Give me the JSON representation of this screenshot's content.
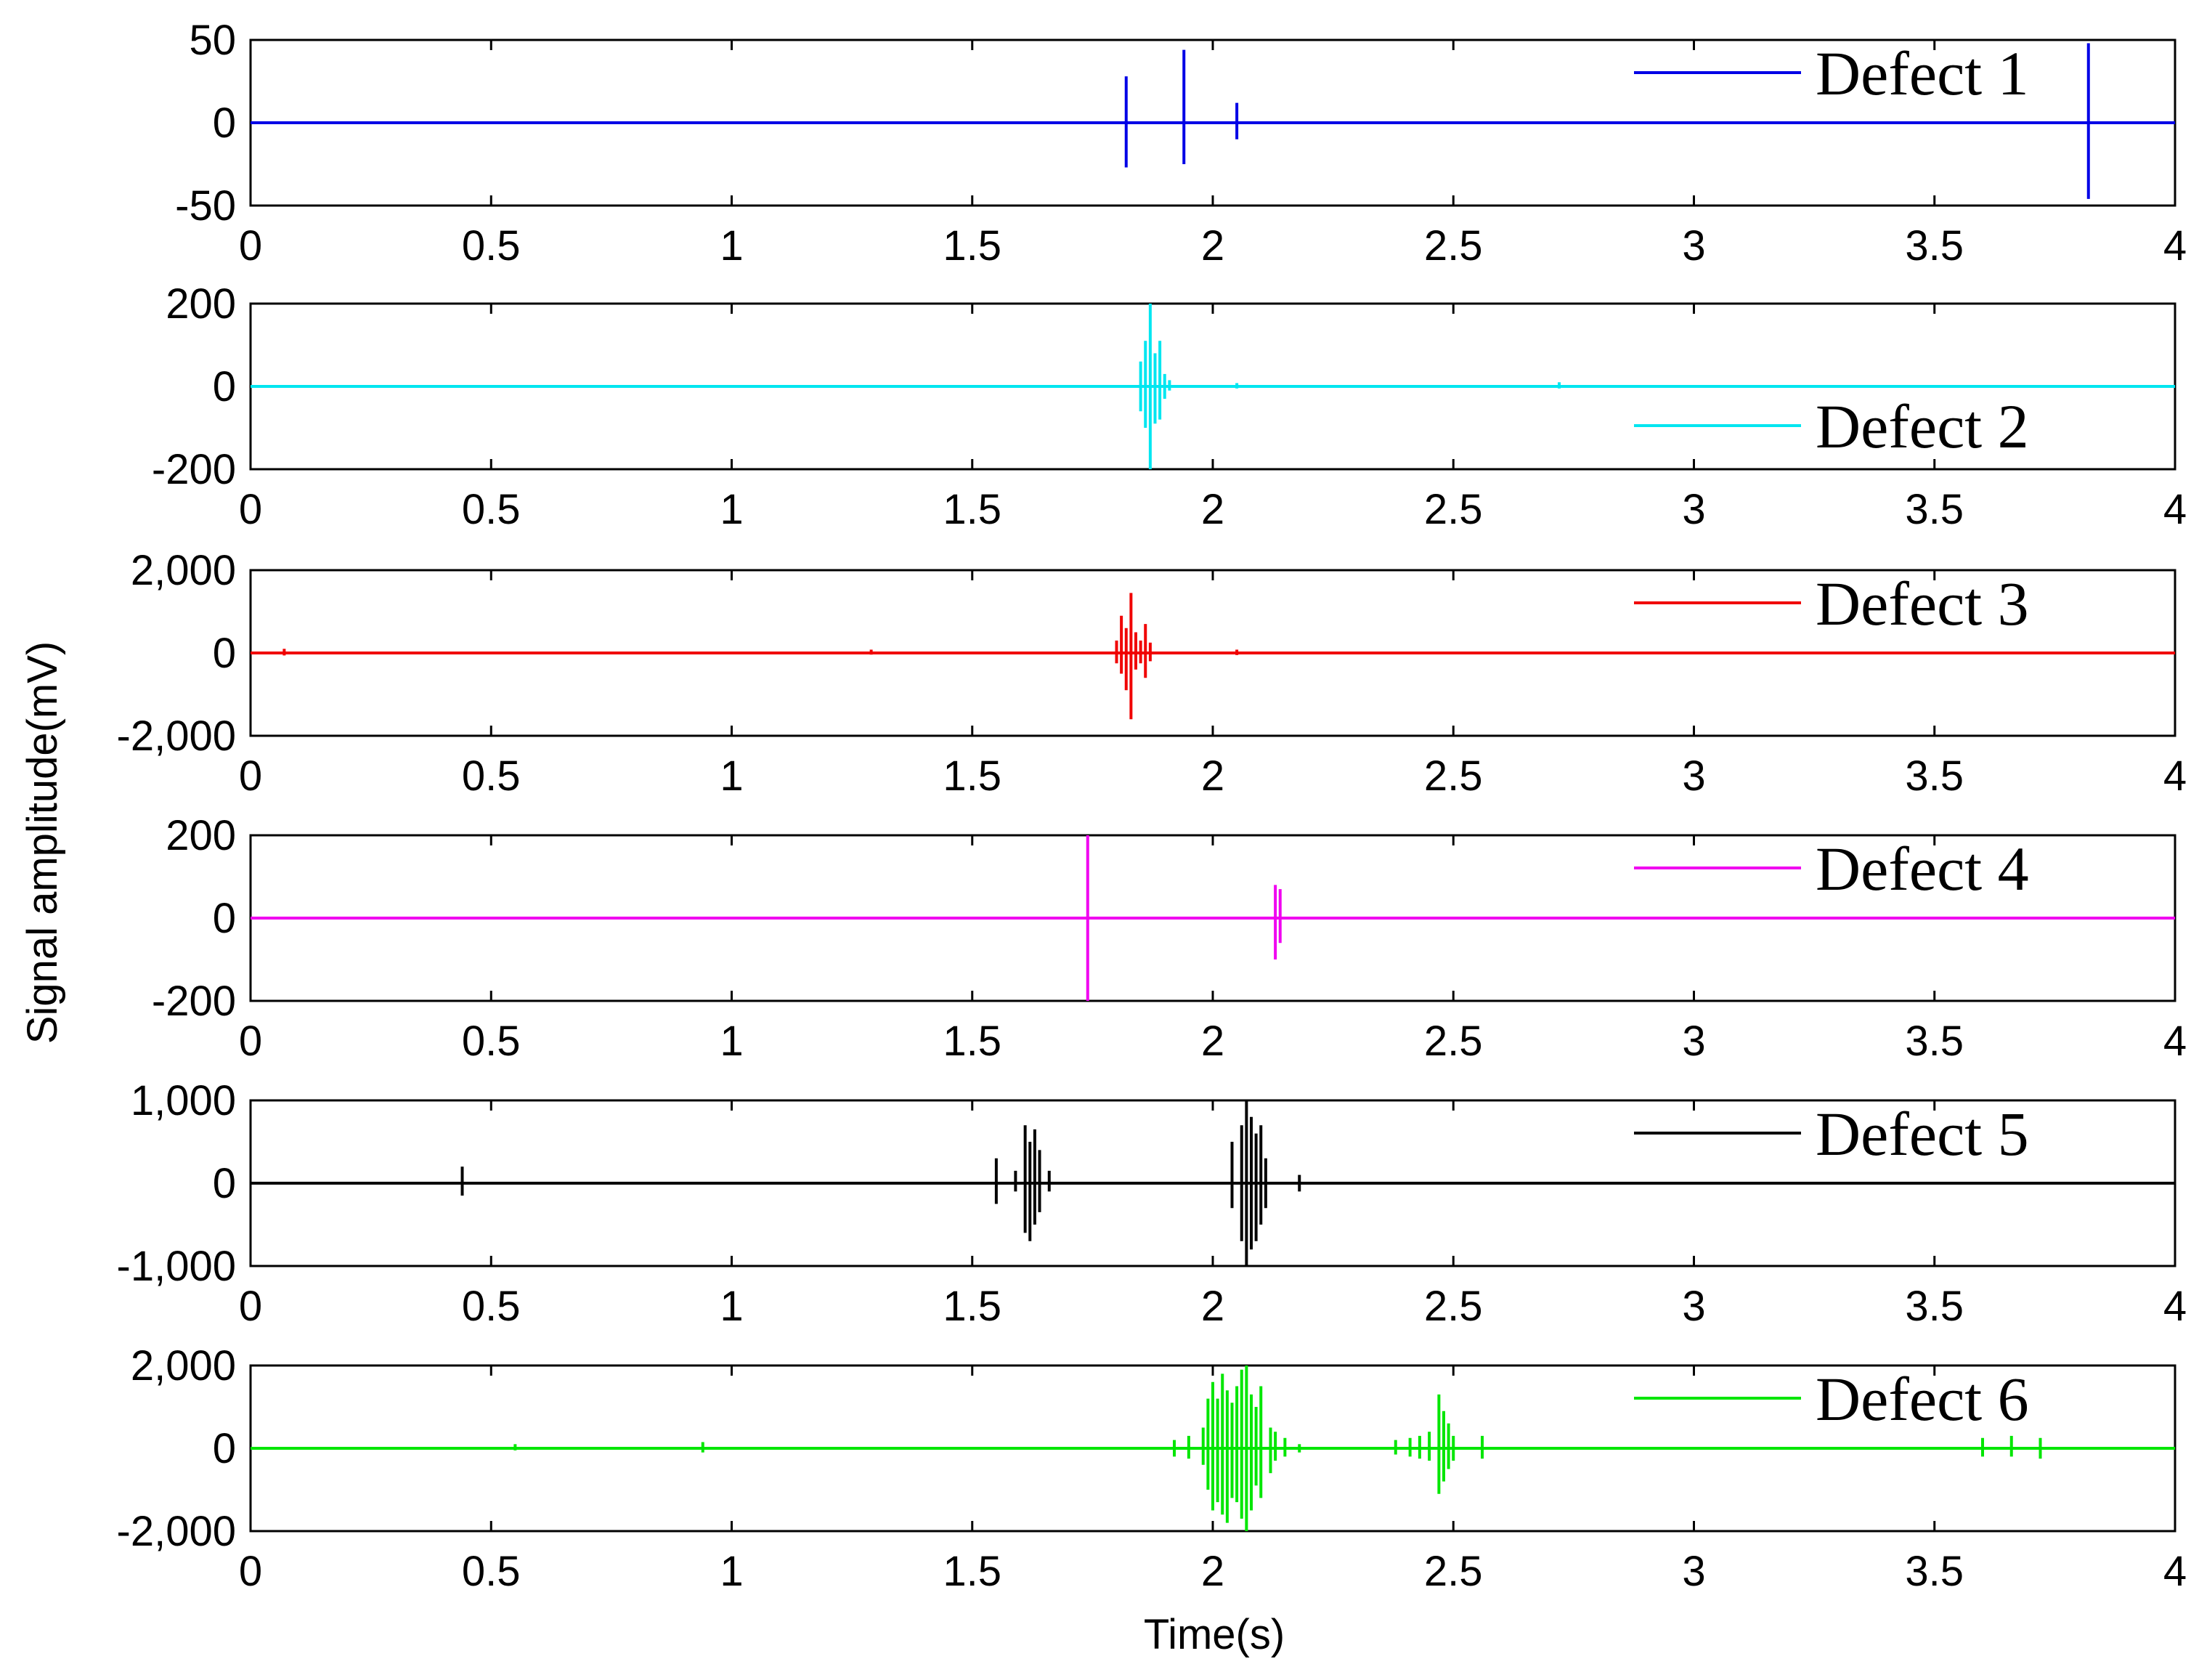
{
  "figure": {
    "xlabel": "Time(s)",
    "ylabel": "Signal amplitude(mV)"
  },
  "chart_data": [
    {
      "type": "line",
      "series": [
        {
          "name": "Defect 1",
          "color": "#0000e6"
        }
      ],
      "xlim": [
        0,
        4
      ],
      "xticks": [
        "0",
        "0.5",
        "1",
        "1.5",
        "2",
        "2.5",
        "3",
        "3.5",
        "4"
      ],
      "ylim": [
        -50,
        50
      ],
      "yticks": [
        {
          "value": 50,
          "label": "50"
        },
        {
          "value": 0,
          "label": "0"
        },
        {
          "value": -50,
          "label": "-50"
        }
      ],
      "legend": "top-right",
      "events": [
        {
          "t": 1.82,
          "pos": 28,
          "neg": -27
        },
        {
          "t": 1.94,
          "pos": 44,
          "neg": -25
        },
        {
          "t": 2.05,
          "pos": 12,
          "neg": -10
        },
        {
          "t": 3.82,
          "pos": 48,
          "neg": -46
        }
      ]
    },
    {
      "type": "line",
      "series": [
        {
          "name": "Defect 2",
          "color": "#00e6f0"
        }
      ],
      "xlim": [
        0,
        4
      ],
      "xticks": [
        "0",
        "0.5",
        "1",
        "1.5",
        "2",
        "2.5",
        "3",
        "3.5",
        "4"
      ],
      "ylim": [
        -200,
        200
      ],
      "yticks": [
        {
          "value": 200,
          "label": "200"
        },
        {
          "value": 0,
          "label": "0"
        },
        {
          "value": -200,
          "label": "-200"
        }
      ],
      "legend": "bottom-right",
      "events": [
        {
          "t": 1.85,
          "pos": 60,
          "neg": -60
        },
        {
          "t": 1.86,
          "pos": 110,
          "neg": -100
        },
        {
          "t": 1.87,
          "pos": 200,
          "neg": -200
        },
        {
          "t": 1.88,
          "pos": 80,
          "neg": -90
        },
        {
          "t": 1.89,
          "pos": 110,
          "neg": -80
        },
        {
          "t": 1.9,
          "pos": 30,
          "neg": -30
        },
        {
          "t": 1.91,
          "pos": 15,
          "neg": -10
        },
        {
          "t": 2.05,
          "pos": 8,
          "neg": -5
        },
        {
          "t": 2.72,
          "pos": 10,
          "neg": -5
        }
      ]
    },
    {
      "type": "line",
      "series": [
        {
          "name": "Defect 3",
          "color": "#f00000"
        }
      ],
      "xlim": [
        0,
        4
      ],
      "xticks": [
        "0",
        "0.5",
        "1",
        "1.5",
        "2",
        "2.5",
        "3",
        "3.5",
        "4"
      ],
      "ylim": [
        -2000,
        2000
      ],
      "yticks": [
        {
          "value": 2000,
          "label": "2,000"
        },
        {
          "value": 0,
          "label": "0"
        },
        {
          "value": -2000,
          "label": "-2,000"
        }
      ],
      "legend": "top-right",
      "events": [
        {
          "t": 0.07,
          "pos": 100,
          "neg": -60
        },
        {
          "t": 1.29,
          "pos": 80,
          "neg": -40
        },
        {
          "t": 1.8,
          "pos": 300,
          "neg": -250
        },
        {
          "t": 1.81,
          "pos": 900,
          "neg": -500
        },
        {
          "t": 1.82,
          "pos": 600,
          "neg": -900
        },
        {
          "t": 1.83,
          "pos": 1450,
          "neg": -1600
        },
        {
          "t": 1.84,
          "pos": 500,
          "neg": -400
        },
        {
          "t": 1.85,
          "pos": 300,
          "neg": -250
        },
        {
          "t": 1.86,
          "pos": 700,
          "neg": -600
        },
        {
          "t": 1.87,
          "pos": 250,
          "neg": -200
        },
        {
          "t": 2.05,
          "pos": 80,
          "neg": -50
        }
      ]
    },
    {
      "type": "line",
      "series": [
        {
          "name": "Defect 4",
          "color": "#f000f0"
        }
      ],
      "xlim": [
        0,
        4
      ],
      "xticks": [
        "0",
        "0.5",
        "1",
        "1.5",
        "2",
        "2.5",
        "3",
        "3.5",
        "4"
      ],
      "ylim": [
        -200,
        200
      ],
      "yticks": [
        {
          "value": 200,
          "label": "200"
        },
        {
          "value": 0,
          "label": "0"
        },
        {
          "value": -200,
          "label": "-200"
        }
      ],
      "legend": "top-right",
      "events": [
        {
          "t": 1.74,
          "pos": 200,
          "neg": -200
        },
        {
          "t": 2.13,
          "pos": 80,
          "neg": -100
        },
        {
          "t": 2.14,
          "pos": 70,
          "neg": -60
        }
      ]
    },
    {
      "type": "line",
      "series": [
        {
          "name": "Defect 5",
          "color": "#000000"
        }
      ],
      "xlim": [
        0,
        4
      ],
      "xticks": [
        "0",
        "0.5",
        "1",
        "1.5",
        "2",
        "2.5",
        "3",
        "3.5",
        "4"
      ],
      "ylim": [
        -1000,
        1000
      ],
      "yticks": [
        {
          "value": 1000,
          "label": "1,000"
        },
        {
          "value": 0,
          "label": "0"
        },
        {
          "value": -1000,
          "label": "-1,000"
        }
      ],
      "legend": "top-right",
      "events": [
        {
          "t": 0.44,
          "pos": 200,
          "neg": -150
        },
        {
          "t": 1.55,
          "pos": 300,
          "neg": -250
        },
        {
          "t": 1.59,
          "pos": 150,
          "neg": -100
        },
        {
          "t": 1.61,
          "pos": 700,
          "neg": -600
        },
        {
          "t": 1.62,
          "pos": 500,
          "neg": -700
        },
        {
          "t": 1.63,
          "pos": 650,
          "neg": -500
        },
        {
          "t": 1.64,
          "pos": 400,
          "neg": -350
        },
        {
          "t": 1.66,
          "pos": 150,
          "neg": -100
        },
        {
          "t": 2.04,
          "pos": 500,
          "neg": -300
        },
        {
          "t": 2.06,
          "pos": 700,
          "neg": -700
        },
        {
          "t": 2.07,
          "pos": 1000,
          "neg": -1000
        },
        {
          "t": 2.08,
          "pos": 800,
          "neg": -800
        },
        {
          "t": 2.09,
          "pos": 600,
          "neg": -700
        },
        {
          "t": 2.1,
          "pos": 700,
          "neg": -500
        },
        {
          "t": 2.11,
          "pos": 300,
          "neg": -300
        },
        {
          "t": 2.18,
          "pos": 100,
          "neg": -100
        }
      ]
    },
    {
      "type": "line",
      "series": [
        {
          "name": "Defect 6",
          "color": "#00e600"
        }
      ],
      "xlim": [
        0,
        4
      ],
      "xticks": [
        "0",
        "0.5",
        "1",
        "1.5",
        "2",
        "2.5",
        "3",
        "3.5",
        "4"
      ],
      "ylim": [
        -2000,
        2000
      ],
      "yticks": [
        {
          "value": 2000,
          "label": "2,000"
        },
        {
          "value": 0,
          "label": "0"
        },
        {
          "value": -2000,
          "label": "-2,000"
        }
      ],
      "legend": "top-right",
      "events": [
        {
          "t": 0.55,
          "pos": 100,
          "neg": -50
        },
        {
          "t": 0.94,
          "pos": 150,
          "neg": -100
        },
        {
          "t": 1.92,
          "pos": 200,
          "neg": -200
        },
        {
          "t": 1.95,
          "pos": 300,
          "neg": -250
        },
        {
          "t": 1.98,
          "pos": 500,
          "neg": -400
        },
        {
          "t": 1.99,
          "pos": 1200,
          "neg": -1000
        },
        {
          "t": 2.0,
          "pos": 1600,
          "neg": -1500
        },
        {
          "t": 2.01,
          "pos": 1200,
          "neg": -1300
        },
        {
          "t": 2.02,
          "pos": 1800,
          "neg": -1600
        },
        {
          "t": 2.03,
          "pos": 1400,
          "neg": -1800
        },
        {
          "t": 2.04,
          "pos": 1100,
          "neg": -1200
        },
        {
          "t": 2.05,
          "pos": 1500,
          "neg": -1300
        },
        {
          "t": 2.06,
          "pos": 1900,
          "neg": -1700
        },
        {
          "t": 2.07,
          "pos": 2000,
          "neg": -2000
        },
        {
          "t": 2.08,
          "pos": 1300,
          "neg": -1500
        },
        {
          "t": 2.09,
          "pos": 1000,
          "neg": -900
        },
        {
          "t": 2.1,
          "pos": 1500,
          "neg": -1200
        },
        {
          "t": 2.12,
          "pos": 500,
          "neg": -600
        },
        {
          "t": 2.13,
          "pos": 400,
          "neg": -300
        },
        {
          "t": 2.15,
          "pos": 250,
          "neg": -200
        },
        {
          "t": 2.18,
          "pos": 100,
          "neg": -100
        },
        {
          "t": 2.38,
          "pos": 200,
          "neg": -150
        },
        {
          "t": 2.41,
          "pos": 250,
          "neg": -200
        },
        {
          "t": 2.43,
          "pos": 300,
          "neg": -250
        },
        {
          "t": 2.45,
          "pos": 400,
          "neg": -300
        },
        {
          "t": 2.47,
          "pos": 1300,
          "neg": -1100
        },
        {
          "t": 2.48,
          "pos": 900,
          "neg": -800
        },
        {
          "t": 2.49,
          "pos": 600,
          "neg": -500
        },
        {
          "t": 2.5,
          "pos": 300,
          "neg": -300
        },
        {
          "t": 2.56,
          "pos": 300,
          "neg": -250
        },
        {
          "t": 3.6,
          "pos": 250,
          "neg": -200
        },
        {
          "t": 3.66,
          "pos": 300,
          "neg": -200
        },
        {
          "t": 3.72,
          "pos": 250,
          "neg": -250
        }
      ]
    }
  ]
}
